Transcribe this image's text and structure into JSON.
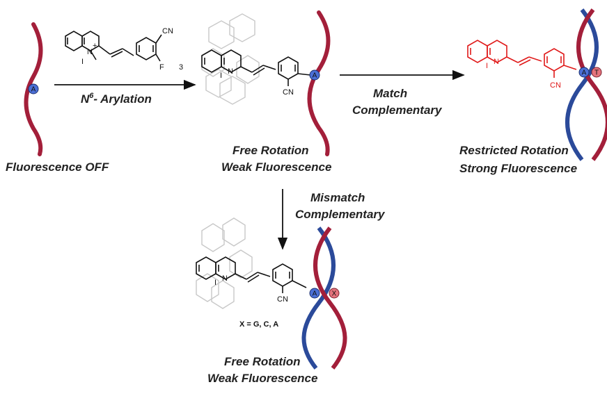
{
  "labels": {
    "fluorescence_off": "Fluorescence OFF",
    "arylation_n": "N",
    "arylation_sup": "6",
    "arylation_rest": "- Arylation",
    "match_line1": "Match",
    "match_line2": "Complementary",
    "free_rotation_top_1": "Free Rotation",
    "free_rotation_top_2": "Weak Fluorescence",
    "restricted_1": "Restricted Rotation",
    "restricted_2": "Strong Fluorescence",
    "mismatch_1": "Mismatch",
    "mismatch_2": "Complementary",
    "free_rotation_bottom_1": "Free Rotation",
    "free_rotation_bottom_2": "Weak Fluorescence",
    "x_equals": "X =  G, C, A"
  },
  "atoms": {
    "cn": "CN",
    "f": "F",
    "n": "N",
    "n_plus": "+",
    "iodide": "I",
    "iodide_minus": "−",
    "subscript_3": "3"
  },
  "nucleotides": {
    "a": "A",
    "t": "T",
    "x": "X"
  },
  "colors": {
    "dna_red": "#a31f3a",
    "dna_blue": "#2b4a9a",
    "probe_red": "#e01818",
    "ghost": "#c8c8c8",
    "nuc_blue": "#4b6fd6",
    "nuc_pink": "#e4737c"
  }
}
